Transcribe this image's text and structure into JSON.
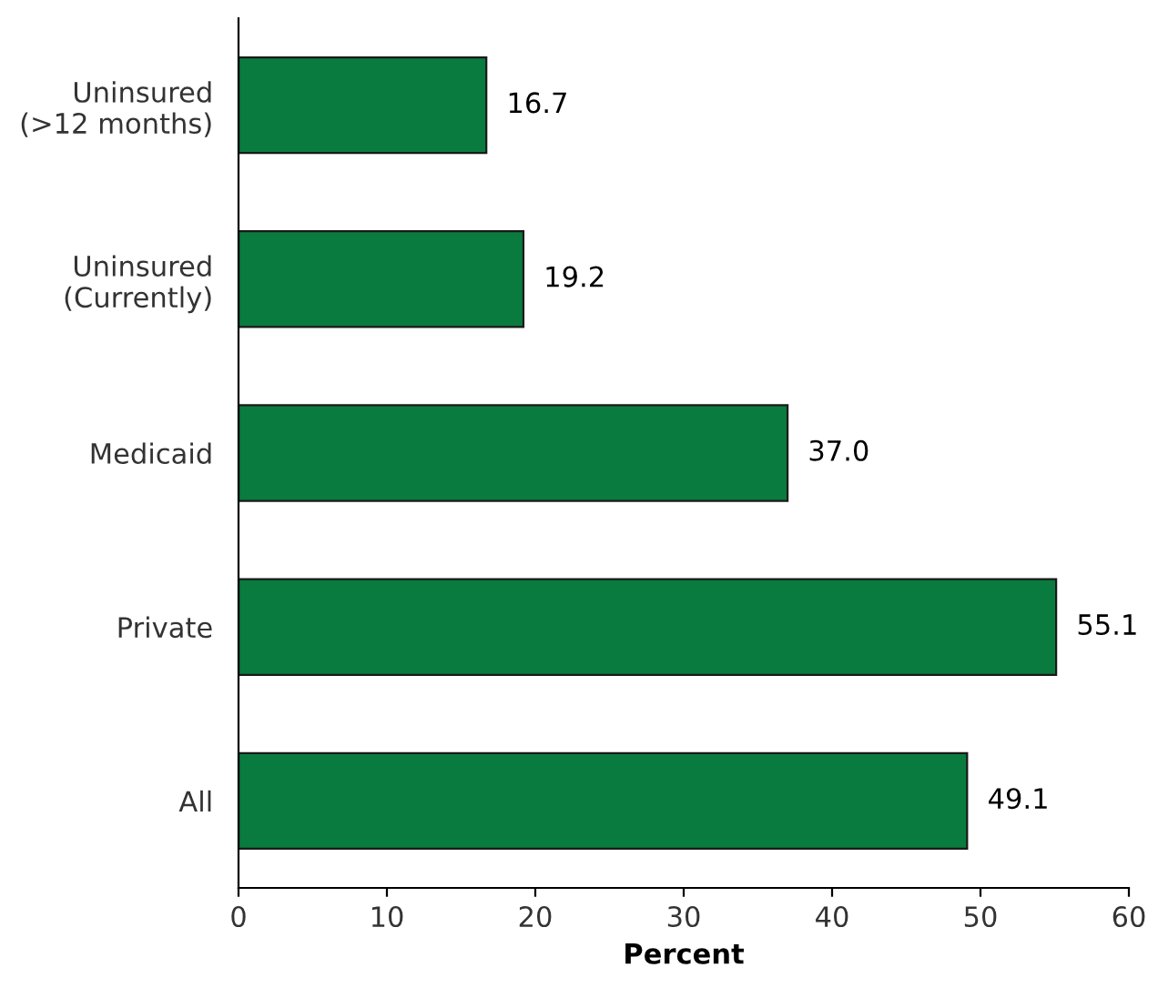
{
  "chart_data": {
    "type": "bar",
    "orientation": "horizontal",
    "xlabel": "Percent",
    "categories": [
      "Uninsured\n(>12 months)",
      "Uninsured\n(Currently)",
      "Medicaid",
      "Private",
      "All"
    ],
    "values": [
      16.7,
      19.2,
      37.0,
      55.1,
      49.1
    ],
    "value_labels": [
      "16.7",
      "19.2",
      "37.0",
      "55.1",
      "49.1"
    ],
    "color": "#0a7b3e",
    "xlim": [
      0,
      60
    ],
    "xticks": [
      0,
      10,
      20,
      30,
      40,
      50,
      60
    ],
    "grid": false,
    "legend": false
  }
}
